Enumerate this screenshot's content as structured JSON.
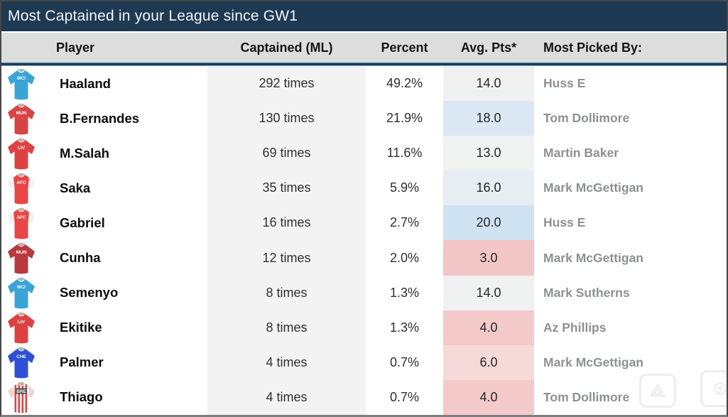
{
  "title": "Most Captained in your League since GW1",
  "columns": [
    "Player",
    "Captained (ML)",
    "Percent",
    "Avg. Pts*",
    "Most Picked By:"
  ],
  "colors": {
    "title_bar": "#1e3a53",
    "header_bg": "#dcdddd",
    "captained_column_bg": "#f3f3f4",
    "picked_by_text": "#8f9092",
    "separator_blue": "#1d3b57"
  },
  "rows": [
    {
      "player": "Haaland",
      "captained": "292 times",
      "percent": "49.2%",
      "avg_pts": "14.0",
      "avg_pts_bg": "#f0f1f1",
      "picked_by": "Huss E",
      "jersey": {
        "label": "MCI",
        "body": "#3ba4d6",
        "sleeve": "#3ba4d6",
        "collar": "#eaf5fb",
        "label_color": "#ffffff",
        "stripes": false
      }
    },
    {
      "player": "B.Fernandes",
      "captained": "130 times",
      "percent": "21.9%",
      "avg_pts": "18.0",
      "avg_pts_bg": "#dbe8f4",
      "picked_by": "Tom Dollimore",
      "jersey": {
        "label": "MUN",
        "body": "#d64444",
        "sleeve": "#d64444",
        "collar": "#f3caca",
        "label_color": "#ffffff",
        "stripes": false
      }
    },
    {
      "player": "M.Salah",
      "captained": "69 times",
      "percent": "11.6%",
      "avg_pts": "13.0",
      "avg_pts_bg": "#f1f2f2",
      "picked_by": "Martin Baker",
      "jersey": {
        "label": "LIV",
        "body": "#dd4242",
        "sleeve": "#dd4242",
        "collar": "#f6dede",
        "label_color": "#ffffff",
        "stripes": false
      }
    },
    {
      "player": "Saka",
      "captained": "35 times",
      "percent": "5.9%",
      "avg_pts": "16.0",
      "avg_pts_bg": "#e6edf3",
      "picked_by": "Mark McGettigan",
      "jersey": {
        "label": "AFC",
        "body": "#e84545",
        "sleeve": "#f2f2f2",
        "collar": "#f6dede",
        "label_color": "#ffffff",
        "stripes": false
      }
    },
    {
      "player": "Gabriel",
      "captained": "16 times",
      "percent": "2.7%",
      "avg_pts": "20.0",
      "avg_pts_bg": "#cfe2f1",
      "picked_by": "Huss E",
      "jersey": {
        "label": "AFC",
        "body": "#e84545",
        "sleeve": "#f2f2f2",
        "collar": "#f6dede",
        "label_color": "#ffffff",
        "stripes": false
      }
    },
    {
      "player": "Cunha",
      "captained": "12 times",
      "percent": "2.0%",
      "avg_pts": "3.0",
      "avg_pts_bg": "#f2c6c6",
      "picked_by": "Mark McGettigan",
      "jersey": {
        "label": "MUN",
        "body": "#b83a3e",
        "sleeve": "#b83a3e",
        "collar": "#e7c2c2",
        "label_color": "#ffffff",
        "stripes": false
      }
    },
    {
      "player": "Semenyo",
      "captained": "8 times",
      "percent": "1.3%",
      "avg_pts": "14.0",
      "avg_pts_bg": "#f0f1f1",
      "picked_by": "Mark Sutherns",
      "jersey": {
        "label": "MCI",
        "body": "#3ba4d6",
        "sleeve": "#3ba4d6",
        "collar": "#eaf5fb",
        "label_color": "#ffffff",
        "stripes": false
      }
    },
    {
      "player": "Ekitike",
      "captained": "8 times",
      "percent": "1.3%",
      "avg_pts": "4.0",
      "avg_pts_bg": "#f3c9c9",
      "picked_by": "Az Phillips",
      "jersey": {
        "label": "LIV",
        "body": "#dd4242",
        "sleeve": "#dd4242",
        "collar": "#f6dede",
        "label_color": "#ffffff",
        "stripes": false
      }
    },
    {
      "player": "Palmer",
      "captained": "4 times",
      "percent": "0.7%",
      "avg_pts": "6.0",
      "avg_pts_bg": "#f6d9d9",
      "picked_by": "Mark McGettigan",
      "jersey": {
        "label": "CHE",
        "body": "#2e4fd6",
        "sleeve": "#2e4fd6",
        "collar": "#d8e0fa",
        "label_color": "#ffffff",
        "stripes": false
      }
    },
    {
      "player": "Thiago",
      "captained": "4 times",
      "percent": "0.7%",
      "avg_pts": "4.0",
      "avg_pts_bg": "#f3c9c9",
      "picked_by": "Tom Dollimore",
      "jersey": {
        "label": "BRE",
        "body": "#d94343",
        "sleeve": "#f0d6d6",
        "collar": "#e7c2c2",
        "label_color": "#ffffff",
        "stripes": true
      }
    }
  ]
}
